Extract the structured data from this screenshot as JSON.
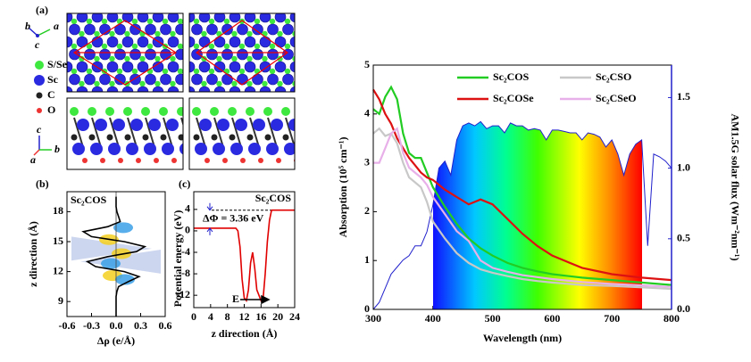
{
  "panel_a": {
    "label": "(a)",
    "legend": [
      "S/Se",
      "Sc",
      "C",
      "O"
    ],
    "axes_top": [
      "b",
      "a",
      "c"
    ],
    "axes_bottom": [
      "c",
      "a",
      "b"
    ]
  },
  "chart_data": [
    {
      "type": "vline",
      "label": "(b)",
      "annotation": "Sc₂COS",
      "x_label": "Δρ (e/Å)",
      "y_label": "z direction (Å)",
      "xlim": [
        -0.6,
        0.6
      ],
      "xticks": [
        -0.6,
        -0.3,
        {
          "value": 0,
          "label": "0.0"
        },
        0.3,
        0.6
      ],
      "ylim": [
        7.5,
        20
      ],
      "yticks": [
        9,
        12,
        15,
        18
      ],
      "color": "#000000",
      "y": [
        7.5,
        8,
        8.5,
        9,
        9.5,
        10,
        10.5,
        11,
        11.5,
        12,
        12.5,
        13,
        13.5,
        14,
        14.5,
        15,
        15.5,
        16,
        16.5,
        17,
        17.5,
        18,
        18.5,
        19,
        19.5
      ],
      "values": [
        0,
        0,
        0,
        0,
        0,
        0.01,
        0.03,
        0.15,
        0.28,
        0.1,
        -0.25,
        -0.35,
        -0.1,
        0.25,
        0.35,
        0.1,
        -0.3,
        -0.4,
        -0.1,
        0.05,
        0.03,
        0.01,
        0,
        0,
        0
      ]
    },
    {
      "type": "line",
      "label": "(c)",
      "annotation": "Sc₂COS",
      "delta_label": "ΔΦ = 3.36 eV",
      "arrow_label": "E",
      "x_label": "z direction (Å)",
      "y_label": "Potential energy (eV)",
      "xlim": [
        0,
        24
      ],
      "xticks": [
        0,
        4,
        8,
        12,
        16,
        20,
        24
      ],
      "ylim": [
        -14.3,
        7.3
      ],
      "yticks": [
        -12,
        -8,
        -4,
        0,
        4
      ],
      "reference_line": 3.86,
      "color": "#e00000",
      "x": [
        0,
        4,
        8,
        10,
        10.5,
        11,
        11.5,
        12,
        12.5,
        13,
        13.5,
        14,
        14.5,
        15,
        15.5,
        16,
        16.5,
        17,
        17.5,
        18,
        18.5,
        20,
        24
      ],
      "values": [
        0.5,
        0.5,
        0.5,
        0.5,
        0,
        -3,
        -9,
        -12.5,
        -13,
        -11,
        -6,
        -4,
        -7,
        -11,
        -12,
        -13,
        -12.5,
        -8,
        -2,
        2,
        3.86,
        3.86,
        3.86
      ]
    },
    {
      "type": "line",
      "x_label": "Wavelength (nm)",
      "y_label": "Absorption (10⁵ cm⁻¹)",
      "y2_label": "AM1.5G solar flux (Wm⁻²nm⁻¹)",
      "xlim": [
        300,
        800
      ],
      "xticks": [
        300,
        400,
        500,
        600,
        700,
        800
      ],
      "ylim": [
        0,
        5
      ],
      "yticks": [
        0,
        1,
        2,
        3,
        4,
        5
      ],
      "y2lim": [
        0,
        1.73
      ],
      "y2ticks": [
        {
          "value": 0,
          "label": "0.0"
        },
        0.5,
        {
          "value": 1,
          "label": "1.0"
        },
        1.5
      ],
      "legend": "upper center",
      "x": [
        300,
        310,
        320,
        330,
        340,
        350,
        360,
        370,
        380,
        390,
        400,
        420,
        440,
        460,
        480,
        500,
        525,
        550,
        575,
        600,
        650,
        700,
        750,
        800
      ],
      "series": [
        {
          "name": "Sc₂COS",
          "color": "#22cc22",
          "values": [
            4.1,
            4.0,
            4.35,
            4.55,
            4.3,
            3.6,
            3.2,
            3.1,
            3.1,
            2.8,
            2.5,
            2.1,
            1.75,
            1.45,
            1.25,
            1.1,
            0.95,
            0.85,
            0.78,
            0.72,
            0.65,
            0.6,
            0.55,
            0.5
          ]
        },
        {
          "name": "Sc₂CSO",
          "color": "#c8c8c8",
          "values": [
            3.6,
            3.7,
            3.55,
            3.6,
            3.4,
            3.0,
            2.7,
            2.6,
            2.5,
            2.2,
            1.8,
            1.45,
            1.15,
            0.95,
            0.82,
            0.75,
            0.68,
            0.62,
            0.58,
            0.55,
            0.5,
            0.48,
            0.45,
            0.42
          ]
        },
        {
          "name": "Sc₂COSe",
          "color": "#dd1111",
          "values": [
            4.5,
            4.3,
            4.0,
            3.8,
            3.5,
            3.3,
            3.1,
            2.95,
            2.8,
            2.7,
            2.65,
            2.45,
            2.3,
            2.15,
            2.25,
            2.15,
            1.85,
            1.55,
            1.3,
            1.1,
            0.85,
            0.72,
            0.65,
            0.6
          ]
        },
        {
          "name": "Sc₂CSeO",
          "color": "#e8b0e8",
          "values": [
            3.0,
            3.0,
            3.3,
            3.6,
            3.7,
            3.2,
            2.9,
            2.8,
            2.7,
            2.55,
            2.3,
            1.95,
            1.6,
            1.4,
            1.0,
            0.85,
            0.77,
            0.7,
            0.66,
            0.62,
            0.56,
            0.52,
            0.49,
            0.46
          ]
        }
      ],
      "flux": {
        "color": "#2020cc",
        "axis": "y2",
        "x": [
          300,
          310,
          320,
          330,
          340,
          350,
          360,
          370,
          380,
          390,
          400,
          410,
          420,
          430,
          440,
          450,
          460,
          470,
          480,
          490,
          500,
          510,
          520,
          530,
          540,
          550,
          560,
          570,
          580,
          590,
          600,
          610,
          620,
          630,
          640,
          650,
          660,
          670,
          680,
          690,
          700,
          710,
          720,
          730,
          740,
          750,
          760,
          770,
          780,
          790,
          800
        ],
        "values": [
          0.0,
          0.05,
          0.15,
          0.25,
          0.3,
          0.35,
          0.38,
          0.45,
          0.45,
          0.55,
          0.74,
          1.0,
          1.05,
          0.95,
          1.2,
          1.3,
          1.32,
          1.3,
          1.33,
          1.28,
          1.3,
          1.3,
          1.25,
          1.32,
          1.3,
          1.3,
          1.27,
          1.28,
          1.27,
          1.2,
          1.27,
          1.27,
          1.26,
          1.25,
          1.25,
          1.2,
          1.25,
          1.24,
          1.22,
          1.15,
          1.2,
          1.1,
          0.95,
          1.1,
          1.17,
          1.2,
          0.45,
          1.1,
          1.08,
          1.05,
          1.0
        ]
      }
    }
  ]
}
